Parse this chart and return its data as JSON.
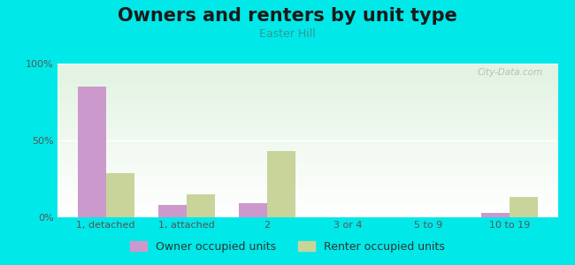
{
  "title": "Owners and renters by unit type",
  "subtitle": "Easter Hill",
  "categories": [
    "1, detached",
    "1, attached",
    "2",
    "3 or 4",
    "5 to 9",
    "10 to 19"
  ],
  "owner_values": [
    85,
    8,
    9,
    0,
    0,
    3
  ],
  "renter_values": [
    29,
    15,
    43,
    0,
    0,
    13
  ],
  "owner_color": "#cc99cc",
  "renter_color": "#c8d49a",
  "background_outer": "#00e8e8",
  "bar_width": 0.35,
  "ylim": [
    0,
    100
  ],
  "yticks": [
    0,
    50,
    100
  ],
  "ytick_labels": [
    "0%",
    "50%",
    "100%"
  ],
  "title_fontsize": 15,
  "subtitle_fontsize": 9,
  "legend_fontsize": 9,
  "axis_fontsize": 8,
  "watermark_text": "City-Data.com",
  "legend_owner": "Owner occupied units",
  "legend_renter": "Renter occupied units"
}
